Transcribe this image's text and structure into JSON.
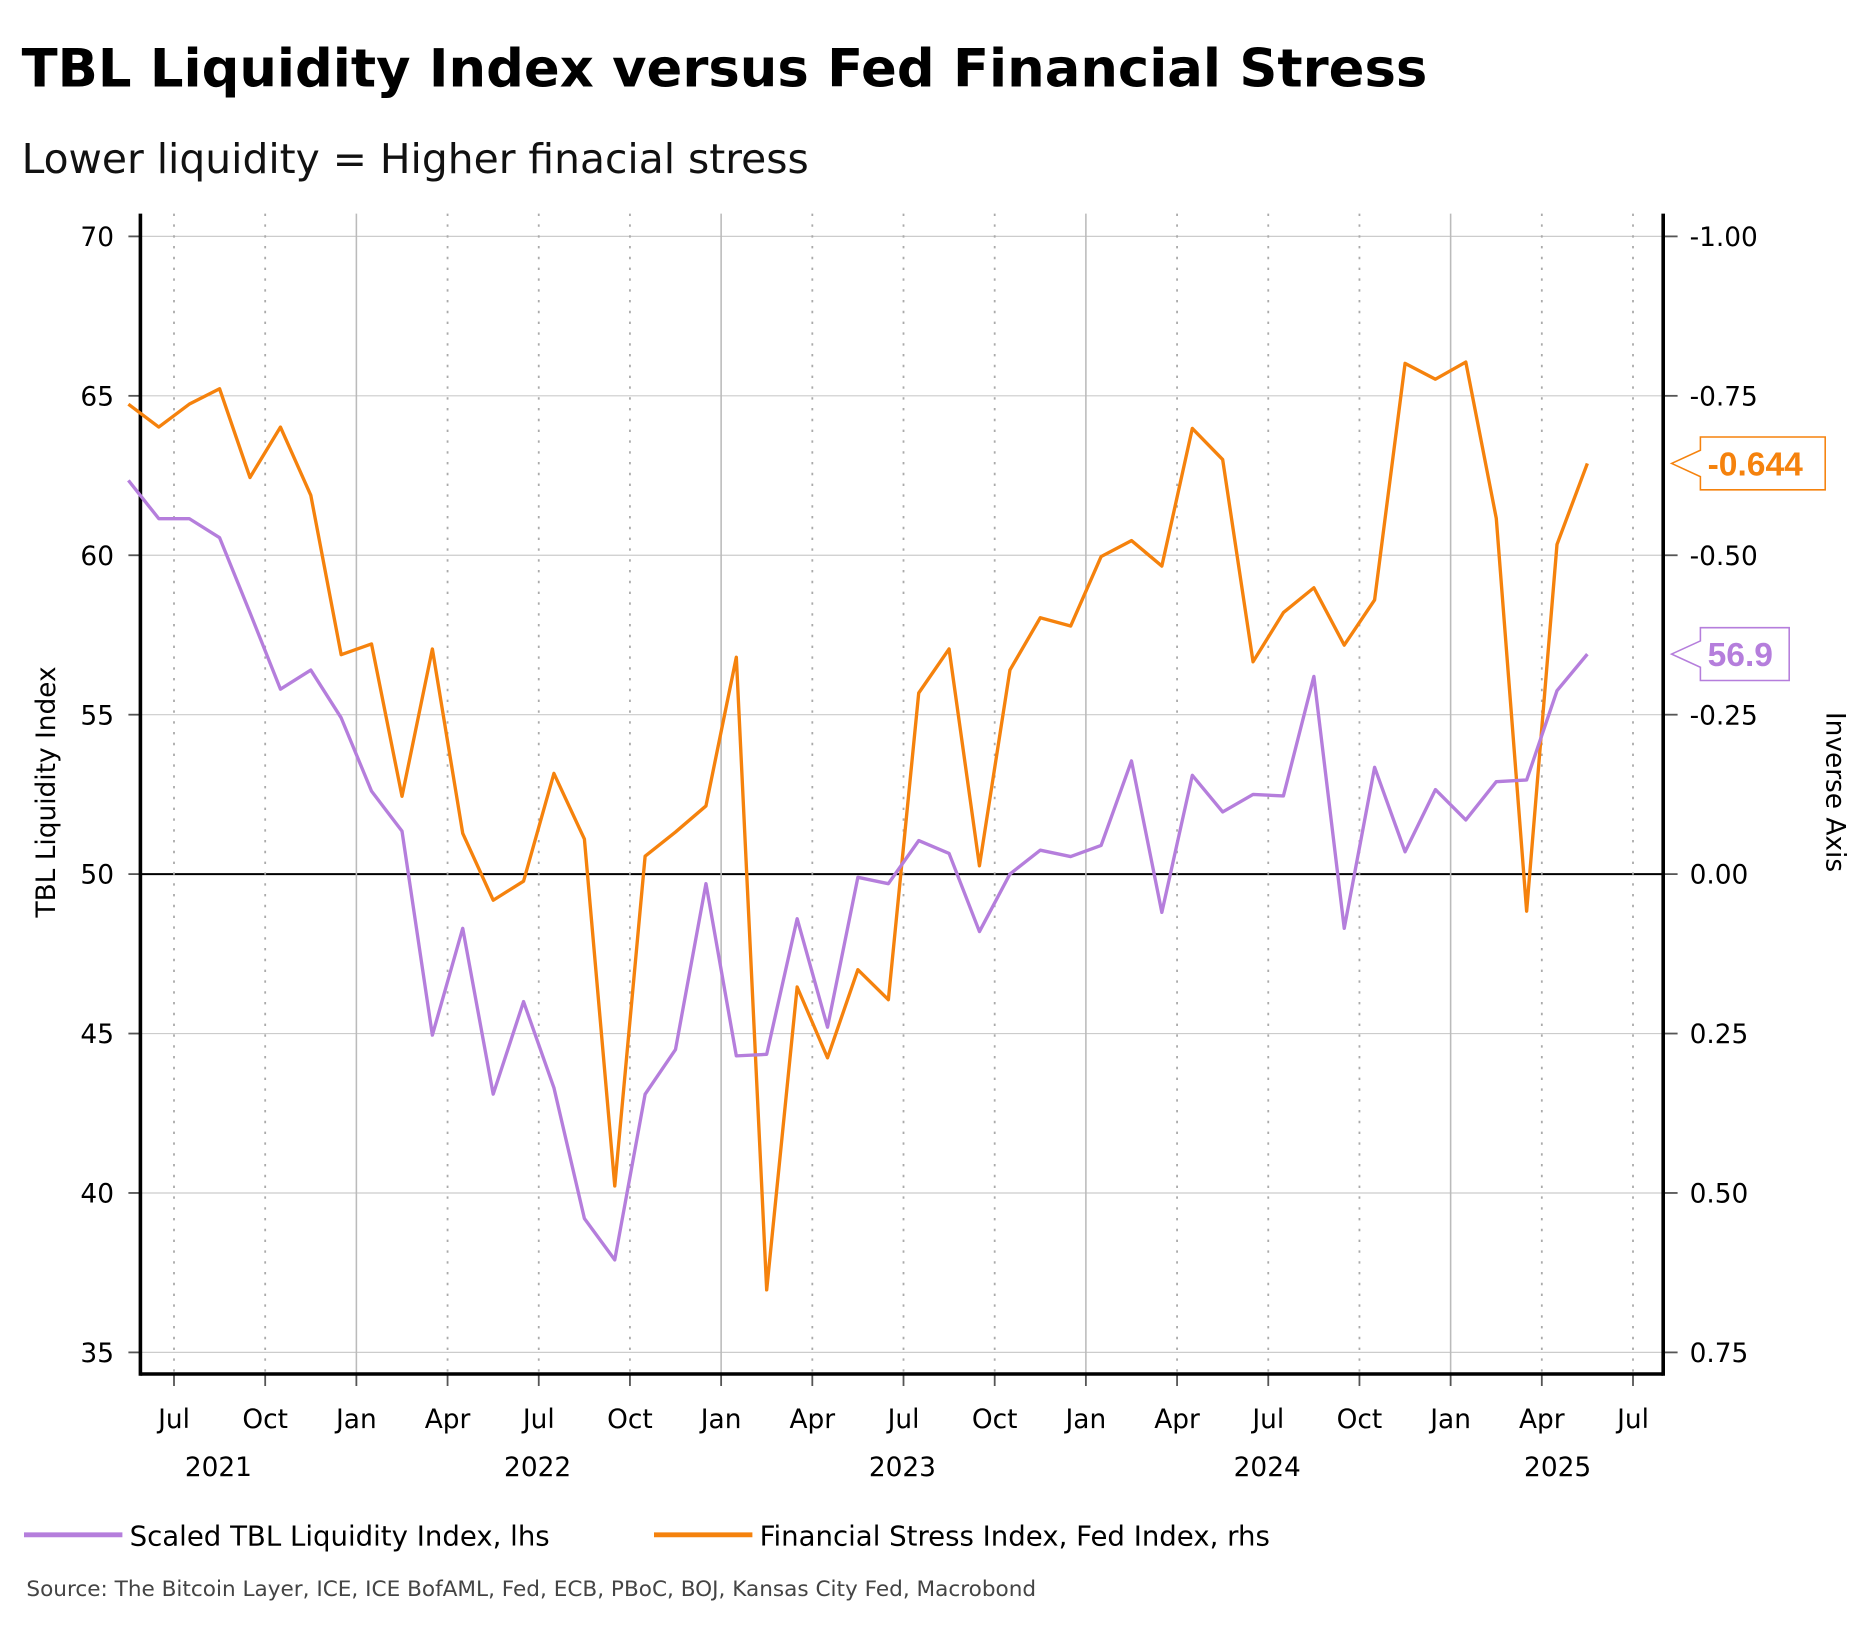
{
  "chart_data": {
    "type": "line",
    "title": "TBL Liquidity Index versus Fed Financial Stress",
    "subtitle": "Lower liquidity = Higher finacial stress",
    "ylabel": "TBL Liquidity Index",
    "y2label": "Inverse Axis",
    "ylim": [
      35,
      70
    ],
    "y2lim": [
      0.75,
      -1.0
    ],
    "y2_inverted": true,
    "yticks": [
      "70",
      "65",
      "60",
      "55",
      "50",
      "45",
      "40",
      "35"
    ],
    "y2ticks": [
      "-1.00",
      "-0.75",
      "-0.50",
      "-0.25",
      "0.00",
      "0.25",
      "0.50",
      "0.75"
    ],
    "xticks": [
      "Jul",
      "Oct",
      "Jan",
      "Apr",
      "Jul",
      "Oct",
      "Jan",
      "Apr",
      "Jul",
      "Oct",
      "Jan",
      "Apr",
      "Jul",
      "Oct",
      "Jan",
      "Apr",
      "Jul"
    ],
    "year_labels": [
      "2021",
      "2022",
      "2023",
      "2024",
      "2025"
    ],
    "grid": true,
    "legend_position": "bottom-left",
    "x": [
      "2021-06",
      "2021-07",
      "2021-08",
      "2021-09",
      "2021-10",
      "2021-11",
      "2021-12",
      "2022-01",
      "2022-02",
      "2022-03",
      "2022-04",
      "2022-05",
      "2022-06",
      "2022-07",
      "2022-08",
      "2022-09",
      "2022-10",
      "2022-11",
      "2022-12",
      "2023-01",
      "2023-02",
      "2023-03",
      "2023-04",
      "2023-05",
      "2023-06",
      "2023-07",
      "2023-08",
      "2023-09",
      "2023-10",
      "2023-11",
      "2023-12",
      "2024-01",
      "2024-02",
      "2024-03",
      "2024-04",
      "2024-05",
      "2024-06",
      "2024-07",
      "2024-08",
      "2024-09",
      "2024-10",
      "2024-11",
      "2024-12",
      "2025-01",
      "2025-02",
      "2025-03",
      "2025-04",
      "2025-05",
      "2025-06"
    ],
    "series": [
      {
        "name": "Scaled TBL Liquidity Index, lhs",
        "axis": "left",
        "color": "#b57edc",
        "last_label": "56.9",
        "values": [
          62.35,
          61.15,
          61.15,
          60.55,
          58.2,
          55.8,
          56.4,
          54.9,
          52.6,
          51.35,
          44.95,
          48.3,
          43.1,
          46.0,
          43.3,
          39.2,
          37.9,
          43.1,
          44.5,
          49.7,
          44.3,
          44.35,
          48.6,
          45.2,
          49.9,
          49.7,
          51.05,
          50.65,
          48.2,
          50.0,
          50.75,
          50.55,
          50.9,
          53.55,
          48.8,
          53.1,
          51.95,
          52.5,
          52.45,
          56.2,
          48.3,
          53.35,
          50.7,
          52.65,
          51.7,
          52.9,
          52.95,
          55.75,
          56.9
        ]
      },
      {
        "name": "Financial Stress Index, Fed Index, rhs",
        "axis": "right",
        "color": "#f5820d",
        "last_label": "-0.644",
        "values": [
          -0.737,
          -0.701,
          -0.737,
          -0.761,
          -0.622,
          -0.701,
          -0.594,
          -0.344,
          -0.361,
          -0.122,
          -0.353,
          -0.064,
          0.041,
          0.011,
          -0.158,
          -0.055,
          0.489,
          -0.028,
          -0.066,
          -0.107,
          -0.34,
          0.652,
          0.177,
          0.288,
          0.15,
          0.197,
          -0.284,
          -0.353,
          -0.013,
          -0.32,
          -0.402,
          -0.389,
          -0.498,
          -0.523,
          -0.483,
          -0.699,
          -0.65,
          -0.333,
          -0.41,
          -0.449,
          -0.359,
          -0.43,
          -0.801,
          -0.776,
          -0.803,
          -0.558,
          0.058,
          -0.517,
          -0.644
        ]
      }
    ],
    "source": "Source: The Bitcoin Layer, ICE, ICE BofAML, Fed, ECB, PBoC, BOJ, Kansas City Fed, Macrobond"
  }
}
